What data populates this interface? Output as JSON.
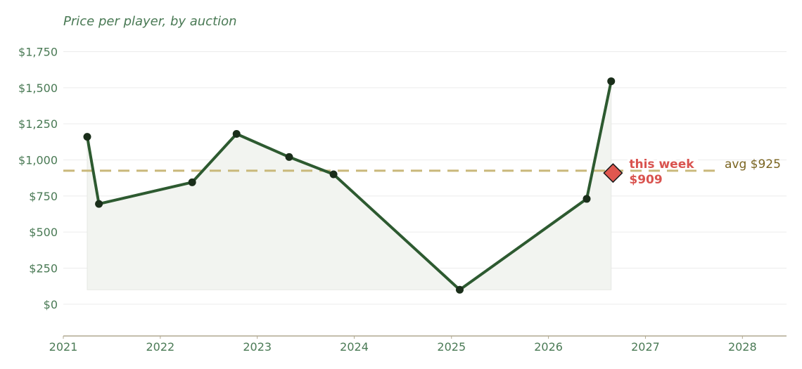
{
  "chart_data": {
    "type": "line",
    "title": "Price per player, by auction",
    "xlabel": "",
    "ylabel": "",
    "y_ticks": [
      {
        "value": 0,
        "label": "$0"
      },
      {
        "value": 250,
        "label": "$250"
      },
      {
        "value": 500,
        "label": "$500"
      },
      {
        "value": 750,
        "label": "$750"
      },
      {
        "value": 1000,
        "label": "$1,000"
      },
      {
        "value": 1250,
        "label": "$1,250"
      },
      {
        "value": 1500,
        "label": "$1,500"
      },
      {
        "value": 1750,
        "label": "$1,750"
      }
    ],
    "x_ticks": [
      {
        "value": "2021-01-01",
        "label": "2021"
      },
      {
        "value": "2022-01-01",
        "label": "2022"
      },
      {
        "value": "2023-01-01",
        "label": "2023"
      },
      {
        "value": "2024-01-01",
        "label": "2024"
      },
      {
        "value": "2025-01-01",
        "label": "2025"
      },
      {
        "value": "2026-01-01",
        "label": "2026"
      },
      {
        "value": "2027-01-01",
        "label": "2027"
      },
      {
        "value": "2028-01-01",
        "label": "2028"
      }
    ],
    "xlim": [
      "2021-01-01",
      "2028-06-15"
    ],
    "ylim": [
      -220,
      1840
    ],
    "grid": "horizontal",
    "series": [
      {
        "points": [
          {
            "x": "2021-04-01",
            "y": 1160
          },
          {
            "x": "2021-05-15",
            "y": 695
          },
          {
            "x": "2022-05-01",
            "y": 845
          },
          {
            "x": "2022-10-15",
            "y": 1180
          },
          {
            "x": "2023-05-01",
            "y": 1020
          },
          {
            "x": "2023-10-15",
            "y": 900
          },
          {
            "x": "2025-02-01",
            "y": 100
          },
          {
            "x": "2026-05-25",
            "y": 730
          },
          {
            "x": "2026-08-25",
            "y": 1545
          }
        ]
      }
    ],
    "reference_line": {
      "value": 925,
      "label": "avg $925"
    },
    "highlight": {
      "x": "2026-09-01",
      "y": 909,
      "label_line1": "this week",
      "label_line2": "$909"
    },
    "colors": {
      "line": "#2d5a30",
      "marker": "#1a2e1a",
      "area": "#f2f4f0",
      "avg_line": "#c9b87a",
      "avg_text": "#7a6420",
      "highlight": "#e0574f",
      "highlight_text": "#d9534f",
      "text": "#4a7a55",
      "axis": "#b0a890",
      "grid": "#ececec"
    }
  }
}
